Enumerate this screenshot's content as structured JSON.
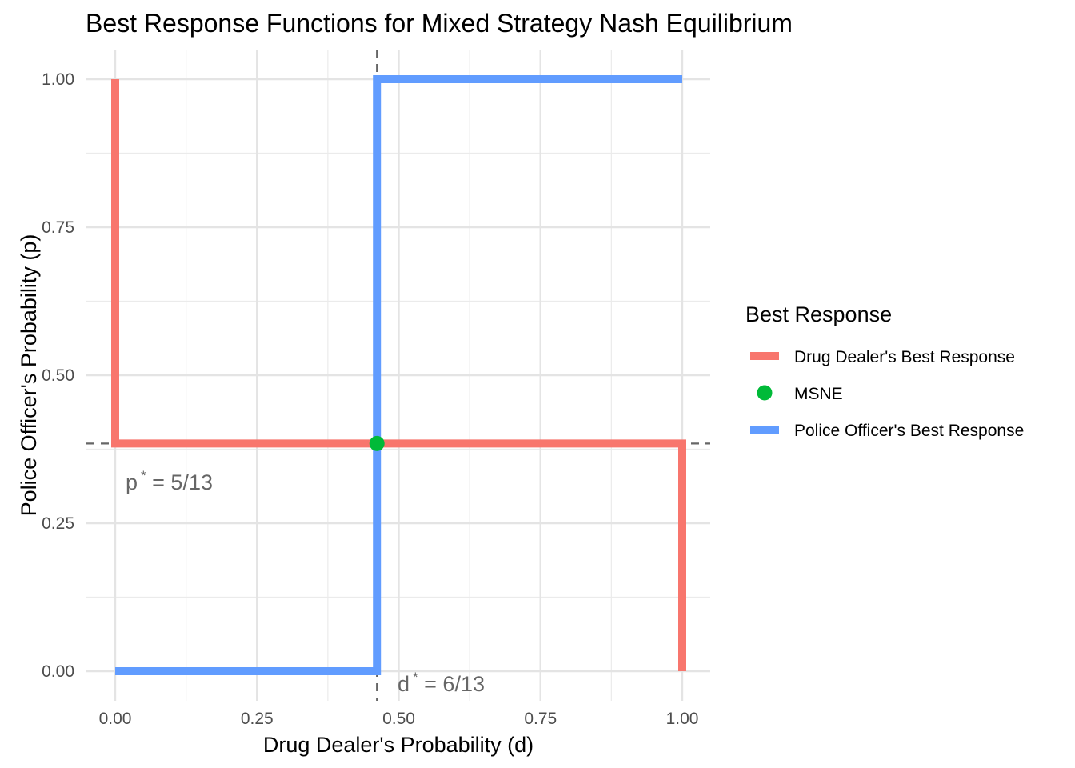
{
  "chart_data": {
    "type": "line",
    "title": "Best Response Functions for Mixed Strategy Nash Equilibrium",
    "xlabel": "Drug Dealer's Probability (d)",
    "ylabel": "Police Officer's Probability (p)",
    "xlim": [
      0,
      1
    ],
    "ylim": [
      0,
      1
    ],
    "x_ticks": [
      "0.00",
      "0.25",
      "0.50",
      "0.75",
      "1.00"
    ],
    "y_ticks": [
      "0.00",
      "0.25",
      "0.50",
      "0.75",
      "1.00"
    ],
    "x_tick_values": [
      0,
      0.25,
      0.5,
      0.75,
      1
    ],
    "y_tick_values": [
      0,
      0.25,
      0.5,
      0.75,
      1
    ],
    "grid": true,
    "legend": {
      "title": "Best Response",
      "placement": "right",
      "entries": [
        {
          "label": "Drug Dealer's Best Response",
          "color": "#F8766D",
          "kind": "line"
        },
        {
          "label": "MSNE",
          "color": "#00BA38",
          "kind": "point"
        },
        {
          "label": "Police Officer's Best Response",
          "color": "#619CFF",
          "kind": "line"
        }
      ]
    },
    "series": [
      {
        "name": "Drug Dealer's Best Response",
        "color": "#F8766D",
        "points": [
          [
            0,
            1
          ],
          [
            0,
            0.3846
          ],
          [
            1,
            0.3846
          ],
          [
            1,
            0
          ]
        ]
      },
      {
        "name": "Police Officer's Best Response",
        "color": "#619CFF",
        "points": [
          [
            0,
            0
          ],
          [
            0.4615,
            0
          ],
          [
            0.4615,
            1
          ],
          [
            1,
            1
          ]
        ]
      }
    ],
    "msne": {
      "name": "MSNE",
      "d": 0.4615,
      "p": 0.3846,
      "color": "#00BA38"
    },
    "reference_lines": {
      "d_star": 0.4615,
      "p_star": 0.3846
    },
    "annotations": {
      "p_star": {
        "var": "p",
        "sup": "*",
        "value": " = 5/13"
      },
      "d_star": {
        "var": "d",
        "sup": "*",
        "value": " = 6/13"
      }
    }
  }
}
